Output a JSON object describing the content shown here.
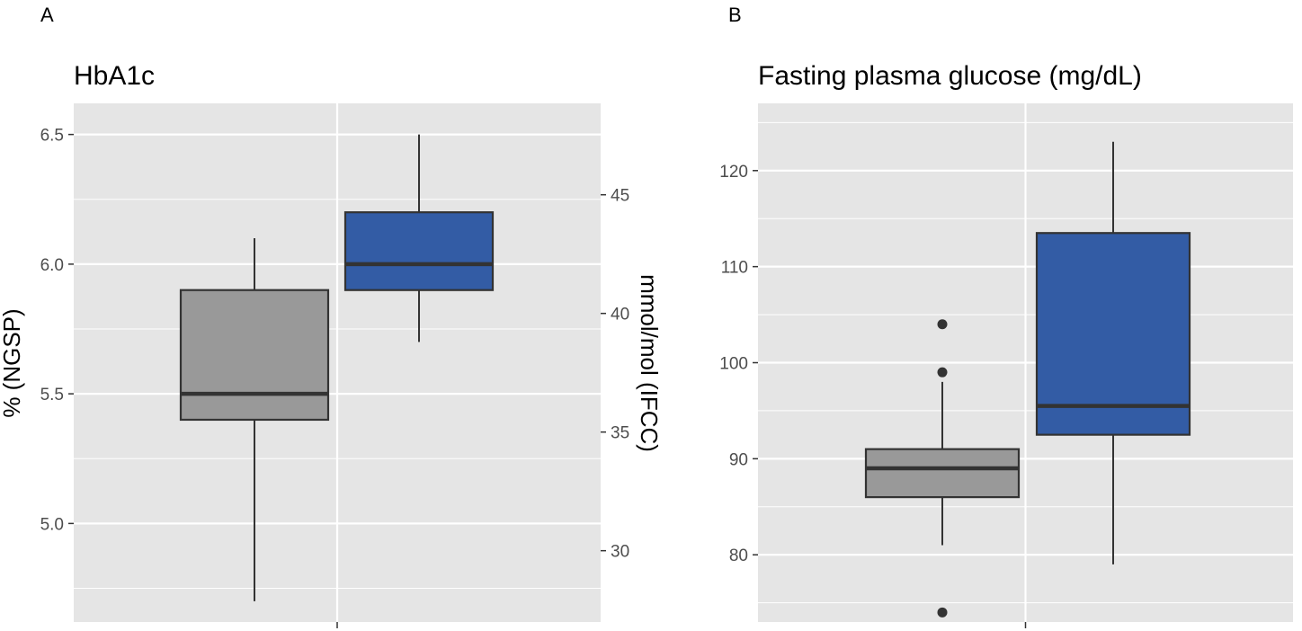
{
  "chart_data": [
    {
      "panel_label": "A",
      "type": "boxplot",
      "title": "HbA1c",
      "ylabel": "% (NGSP)",
      "y2label": "mmol/mol (IFCC)",
      "ylim": [
        4.62,
        6.62
      ],
      "yticks": [
        5.0,
        5.5,
        6.0,
        6.5
      ],
      "ytick_labels": [
        "5.0",
        "5.5",
        "6.0",
        "6.5"
      ],
      "y2ticks": [
        30,
        35,
        40,
        45
      ],
      "y2tick_labels": [
        "30",
        "35",
        "40",
        "45"
      ],
      "y2_conversion": "y2 = 10.929 * (y - 2.15)",
      "grid": true,
      "series": [
        {
          "fill": "#999999",
          "whisker_low": 4.7,
          "q1": 5.4,
          "median": 5.5,
          "q3": 5.9,
          "whisker_high": 6.1,
          "outliers": []
        },
        {
          "fill": "#335ca5",
          "whisker_low": 5.7,
          "q1": 5.9,
          "median": 6.0,
          "q3": 6.2,
          "whisker_high": 6.5,
          "outliers": []
        }
      ]
    },
    {
      "panel_label": "B",
      "type": "boxplot",
      "title": "Fasting plasma glucose (mg/dL)",
      "ylabel": "",
      "ylim": [
        73,
        127
      ],
      "yticks": [
        80,
        90,
        100,
        110,
        120
      ],
      "ytick_labels": [
        "80",
        "90",
        "100",
        "110",
        "120"
      ],
      "grid": true,
      "series": [
        {
          "fill": "#999999",
          "whisker_low": 81,
          "q1": 86,
          "median": 89,
          "q3": 91,
          "whisker_high": 98,
          "outliers": [
            74,
            99,
            104
          ]
        },
        {
          "fill": "#335ca5",
          "whisker_low": 79,
          "q1": 92.5,
          "median": 95.5,
          "q3": 113.5,
          "whisker_high": 123,
          "outliers": []
        }
      ]
    }
  ],
  "colors": {
    "panel_background": "#e5e5e5",
    "grid": "#ffffff",
    "box_outline": "#333333",
    "axis_text": "#4d4d4d"
  }
}
